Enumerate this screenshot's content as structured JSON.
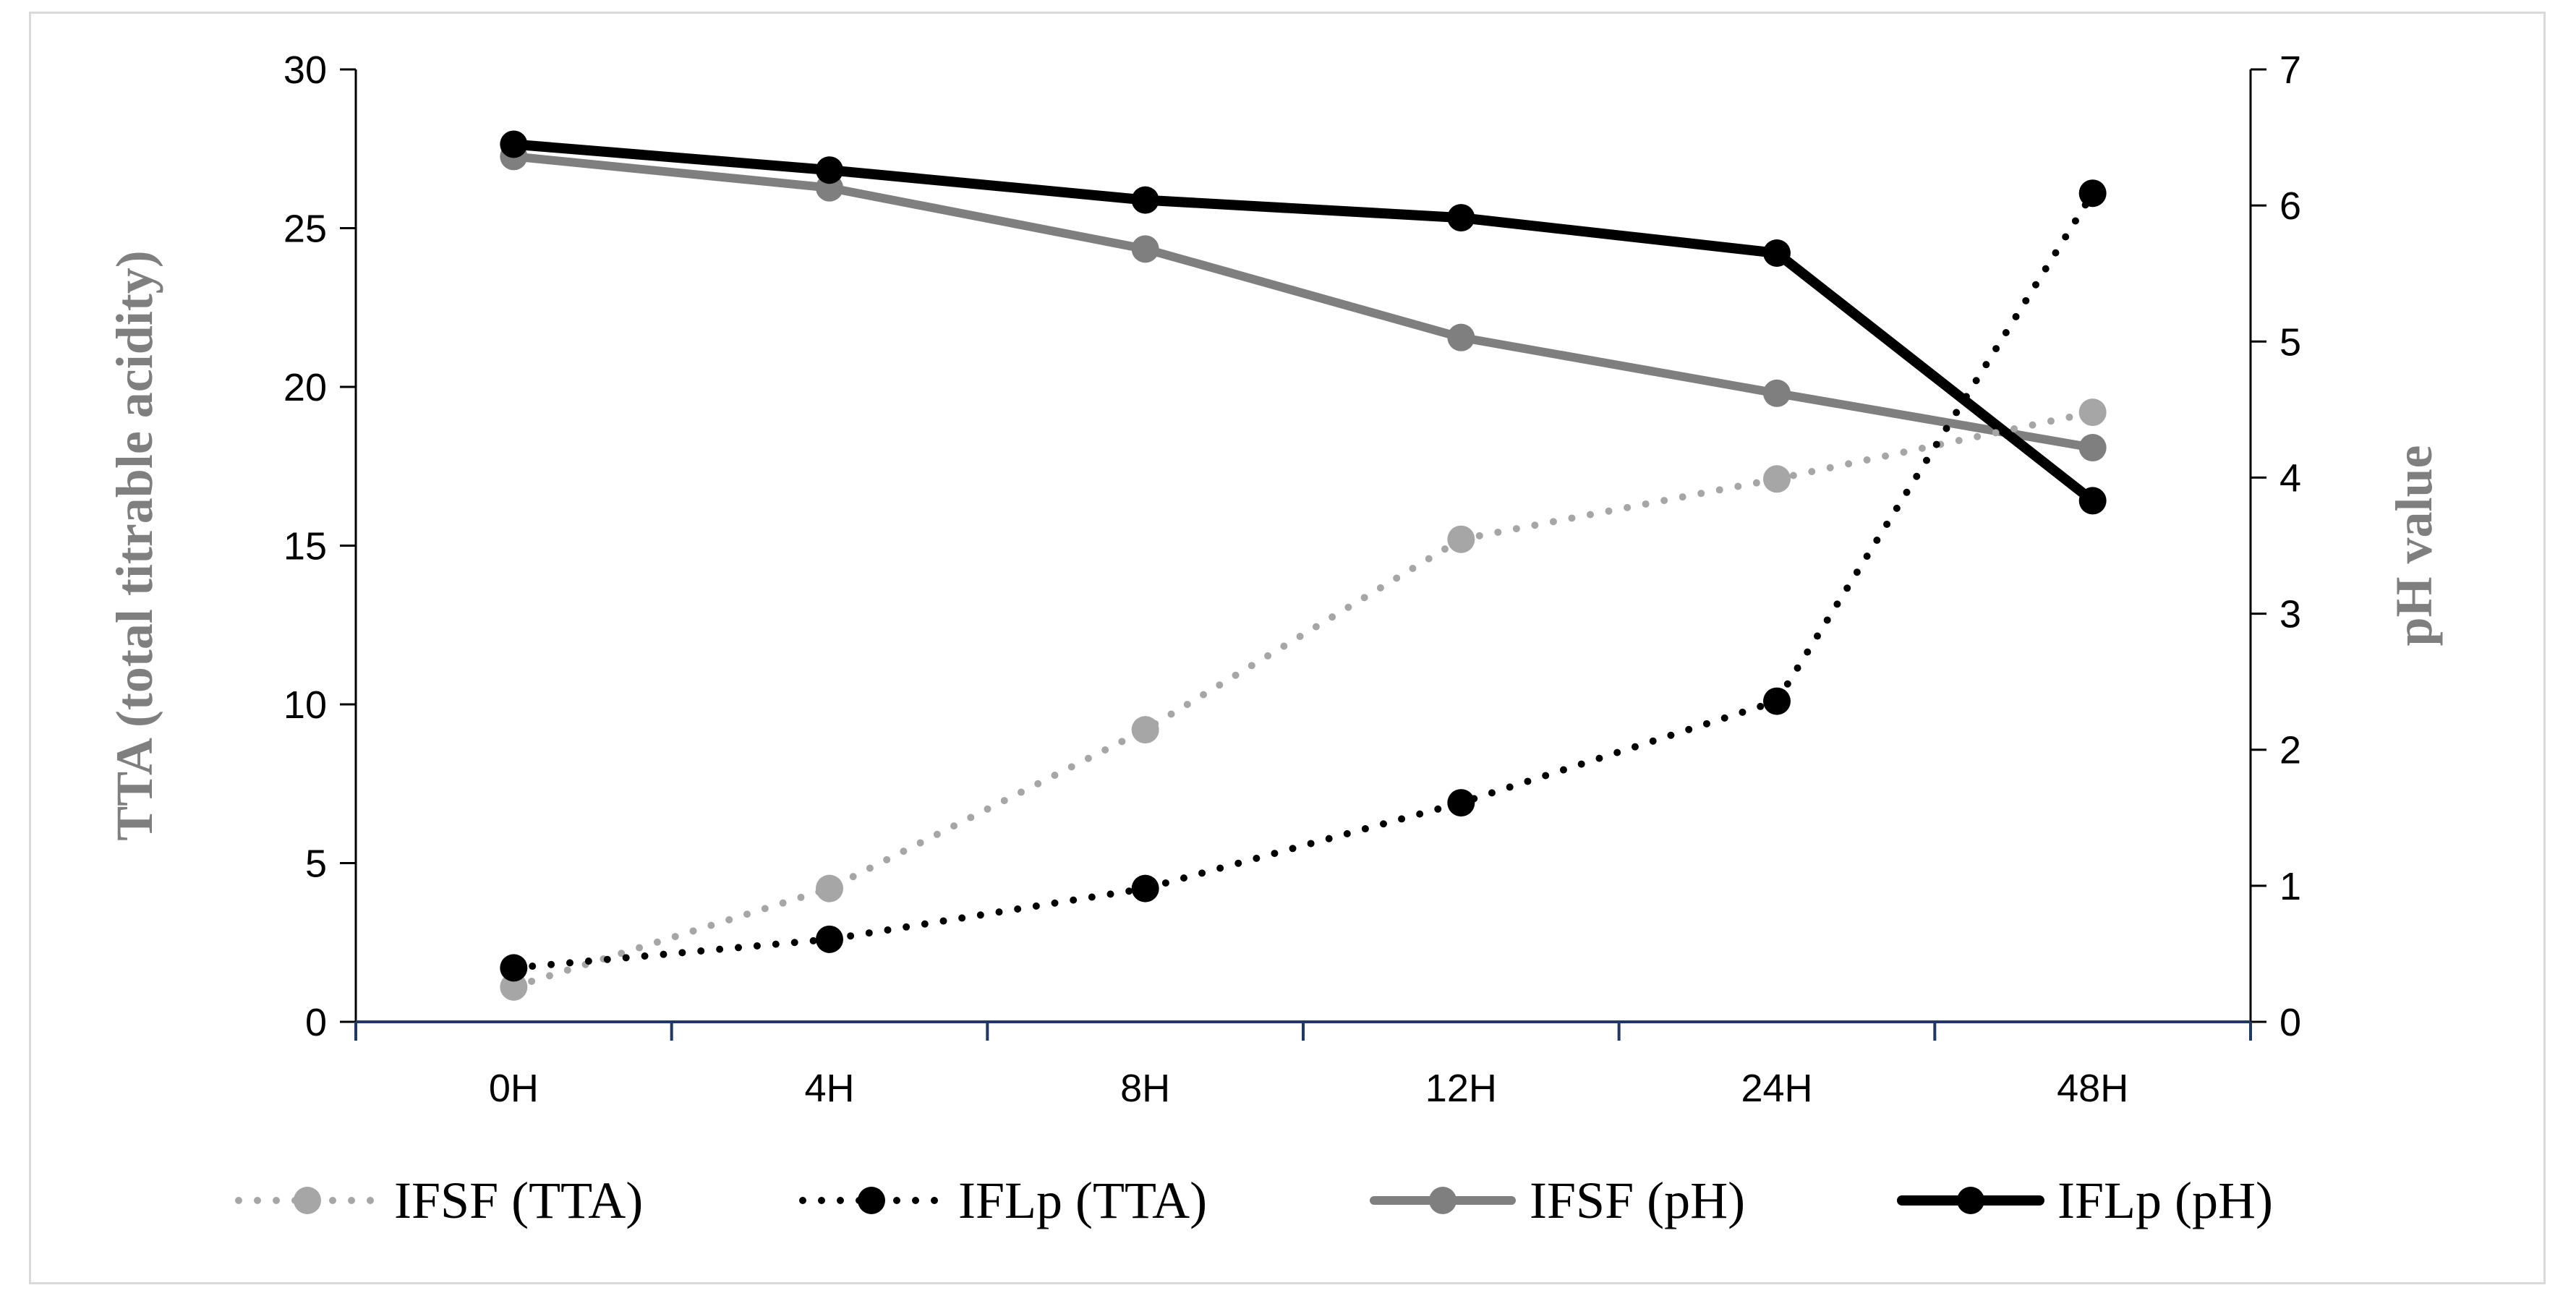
{
  "chart_data": {
    "type": "line",
    "title": "",
    "categories": [
      "0H",
      "4H",
      "8H",
      "12H",
      "24H",
      "48H"
    ],
    "xlabel": "",
    "ylabel": "TTA (total titrable acidity)",
    "y2label": "pH value",
    "ylim": [
      0,
      30
    ],
    "yticks": [
      "0",
      "5",
      "10",
      "15",
      "20",
      "25",
      "30"
    ],
    "y2lim": [
      0,
      7
    ],
    "y2ticks": [
      "0",
      "1",
      "2",
      "3",
      "4",
      "5",
      "6",
      "7"
    ],
    "grid": false,
    "legend_position": "bottom",
    "series": [
      {
        "name": "IFSF (TTA)",
        "axis": "left",
        "color": "#a6a6a6",
        "style": "dotted",
        "values": [
          1.1,
          4.2,
          9.2,
          15.2,
          17.1,
          19.2
        ]
      },
      {
        "name": "IFLp (TTA)",
        "axis": "left",
        "color": "#000000",
        "style": "dotted",
        "values": [
          1.7,
          2.6,
          4.2,
          6.9,
          10.1,
          26.1
        ]
      },
      {
        "name": "IFSF (pH)",
        "axis": "right",
        "color": "#7f7f7f",
        "style": "solid",
        "values": [
          6.36,
          6.13,
          5.68,
          5.03,
          4.62,
          4.22
        ]
      },
      {
        "name": "IFLp (pH)",
        "axis": "right",
        "color": "#000000",
        "style": "solid",
        "values": [
          6.45,
          6.26,
          6.04,
          5.91,
          5.65,
          3.83
        ]
      }
    ],
    "axis_colors": {
      "x_axis": "#203864",
      "left_axis": "#000000",
      "right_axis": "#000000",
      "title": "#7f7f7f"
    }
  }
}
